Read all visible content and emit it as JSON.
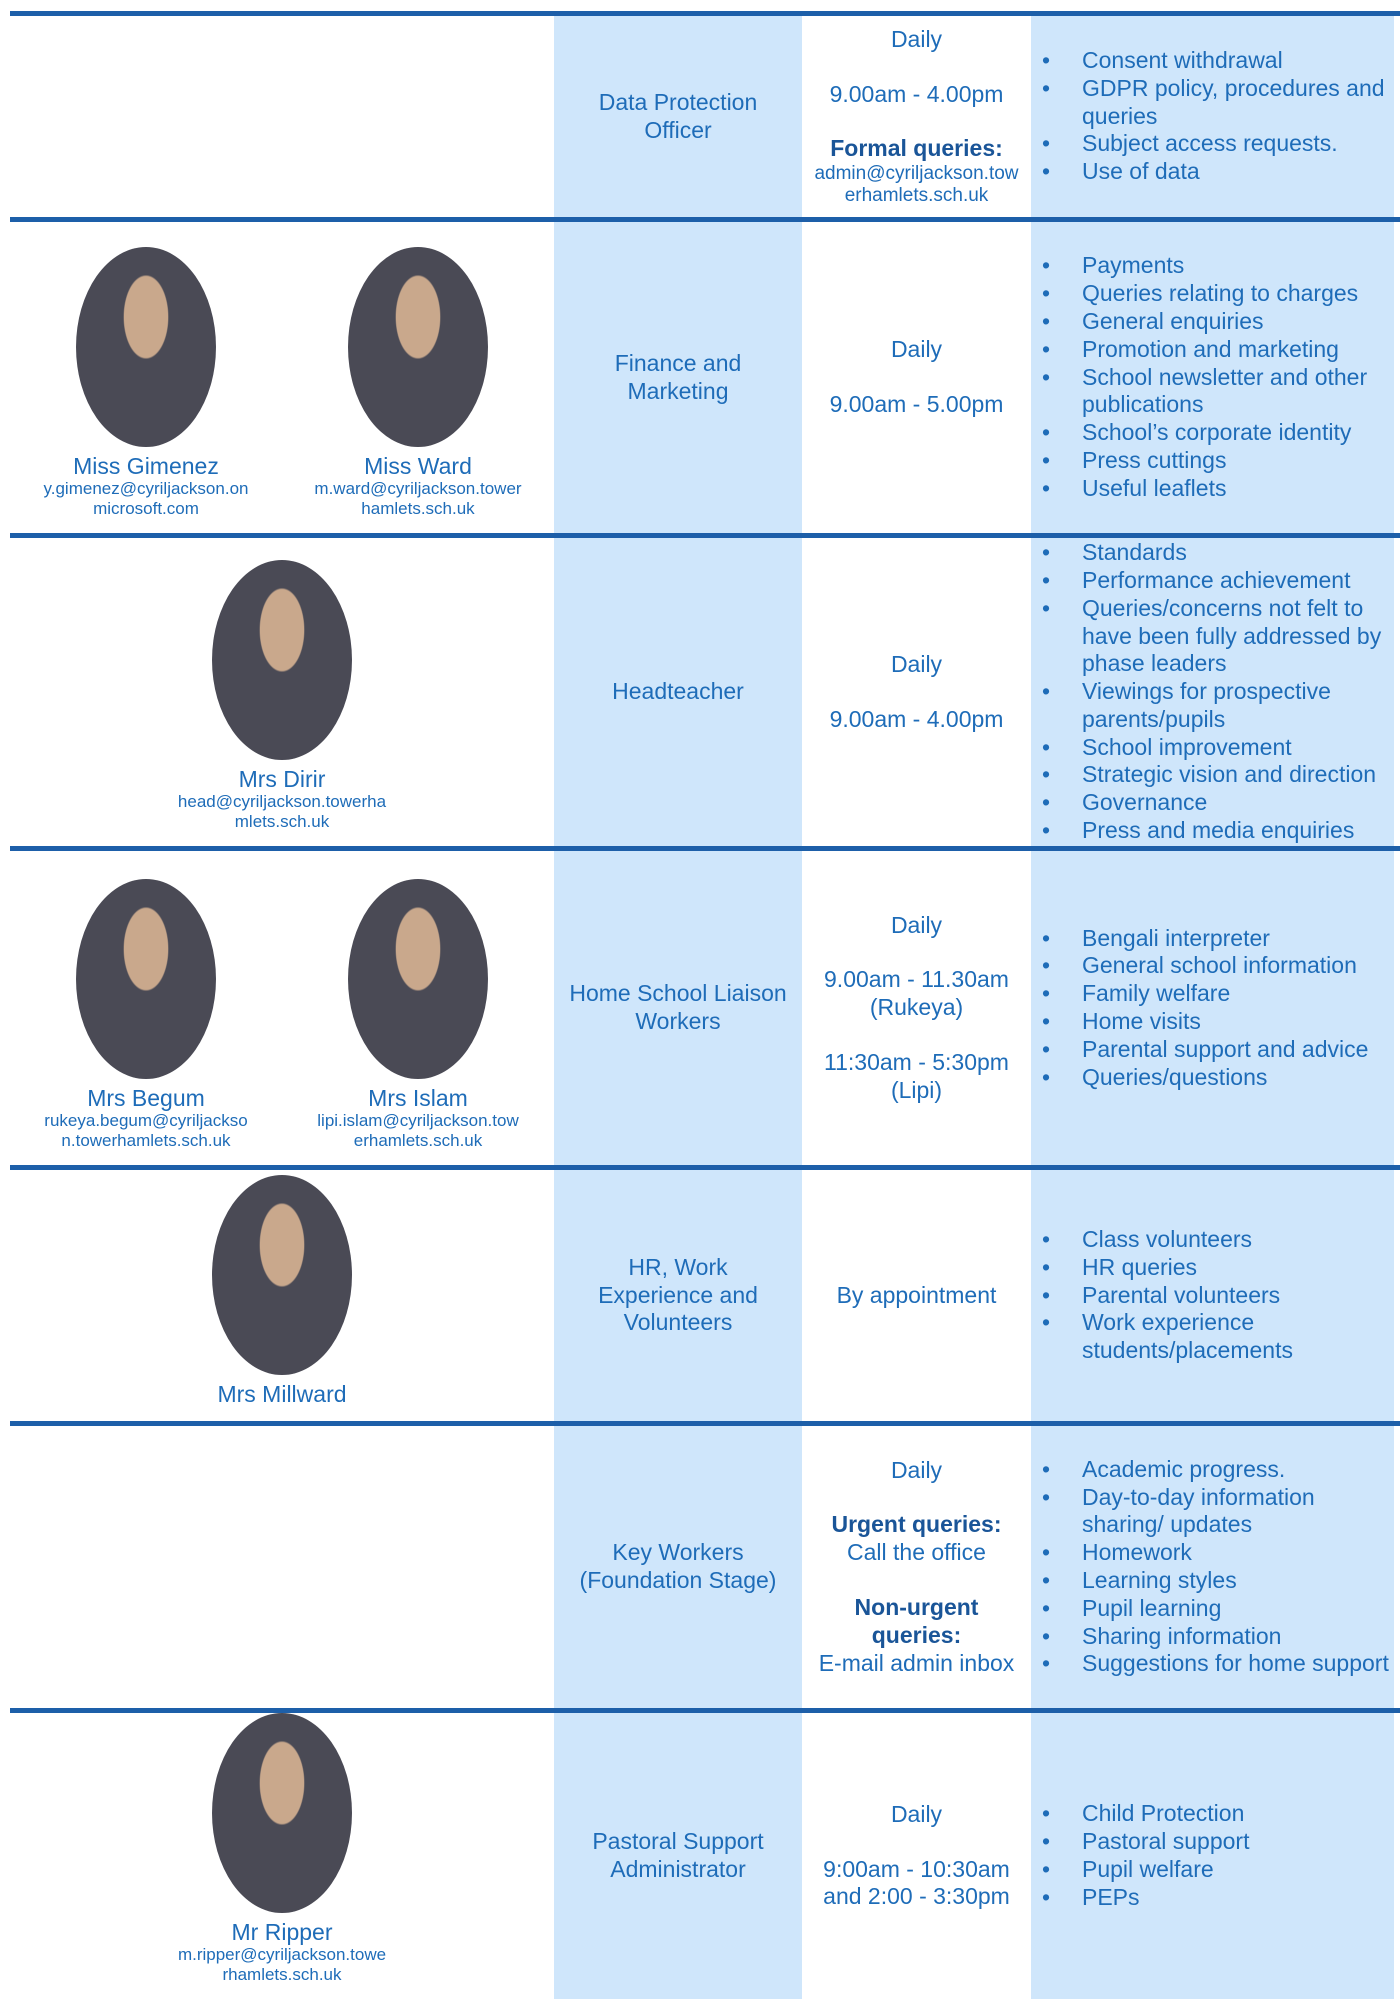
{
  "rows": [
    {
      "people": [],
      "role": "Data Protection Officer",
      "hours": [
        "Daily",
        "9.00am - 4.00pm",
        {
          "heading": "Formal queries:",
          "text": "admin@cyriljackson.towerhamlets.sch.uk"
        }
      ],
      "topics": [
        "Consent withdrawal",
        "GDPR policy, procedures and queries",
        "Subject access requests.",
        "Use of data"
      ]
    },
    {
      "people": [
        {
          "name": "Miss Gimenez",
          "email": "y.gimenez@cyriljackson.onmicrosoft.com"
        },
        {
          "name": "Miss Ward",
          "email": "m.ward@cyriljackson.towerhamlets.sch.uk"
        }
      ],
      "role": "Finance and Marketing",
      "hours": [
        "Daily",
        "9.00am - 5.00pm"
      ],
      "topics": [
        "Payments",
        "Queries relating to charges",
        "General enquiries",
        "Promotion and marketing",
        "School newsletter and other publications",
        "School’s corporate identity",
        "Press cuttings",
        "Useful leaflets"
      ]
    },
    {
      "people": [
        {
          "name": "Mrs Dirir",
          "email": "head@cyriljackson.towerhamlets.sch.uk"
        }
      ],
      "role": "Headteacher",
      "hours": [
        "Daily",
        "9.00am - 4.00pm"
      ],
      "topics": [
        "Standards",
        "Performance achievement",
        "Queries/concerns not felt to have been fully addressed by phase leaders",
        "Viewings for prospective parents/pupils",
        "School improvement",
        "Strategic vision and direction",
        "Governance",
        "Press and media enquiries"
      ]
    },
    {
      "people": [
        {
          "name": "Mrs Begum",
          "email": "rukeya.begum@cyriljackson.towerhamlets.sch.uk"
        },
        {
          "name": "Mrs Islam",
          "email": "lipi.islam@cyriljackson.towerhamlets.sch.uk"
        }
      ],
      "role": "Home School Liaison Workers",
      "hours": [
        "Daily",
        "9.00am - 11.30am (Rukeya)",
        "11:30am - 5:30pm (Lipi)"
      ],
      "topics": [
        "Bengali interpreter",
        "General school information",
        "Family welfare",
        "Home visits",
        "Parental support and advice",
        "Queries/questions"
      ]
    },
    {
      "people": [
        {
          "name": "Mrs Millward"
        }
      ],
      "role": "HR, Work Experience and Volunteers",
      "hours": [
        "By appointment"
      ],
      "topics": [
        "Class volunteers",
        "HR queries",
        "Parental volunteers",
        "Work experience students/placements"
      ]
    },
    {
      "people": [],
      "role": "Key Workers (Foundation Stage)",
      "hours": [
        "Daily",
        {
          "heading": "Urgent queries:",
          "text": "Call the office"
        },
        {
          "heading": "Non-urgent queries:",
          "text": "E-mail admin inbox"
        }
      ],
      "topics": [
        "Academic progress.",
        "Day-to-day information sharing/ updates",
        "Homework",
        "Learning styles",
        "Pupil learning",
        "Sharing information",
        "Suggestions for home support"
      ]
    },
    {
      "people": [
        {
          "name": "Mr Ripper",
          "email": "m.ripper@cyriljackson.towerhamlets.sch.uk"
        }
      ],
      "role": "Pastoral Support Administrator",
      "hours": [
        "Daily",
        "9:00am - 10:30am and 2:00 - 3:30pm"
      ],
      "topics": [
        "Child Protection",
        "Pastoral support",
        "Pupil welfare",
        "PEPs"
      ]
    }
  ]
}
